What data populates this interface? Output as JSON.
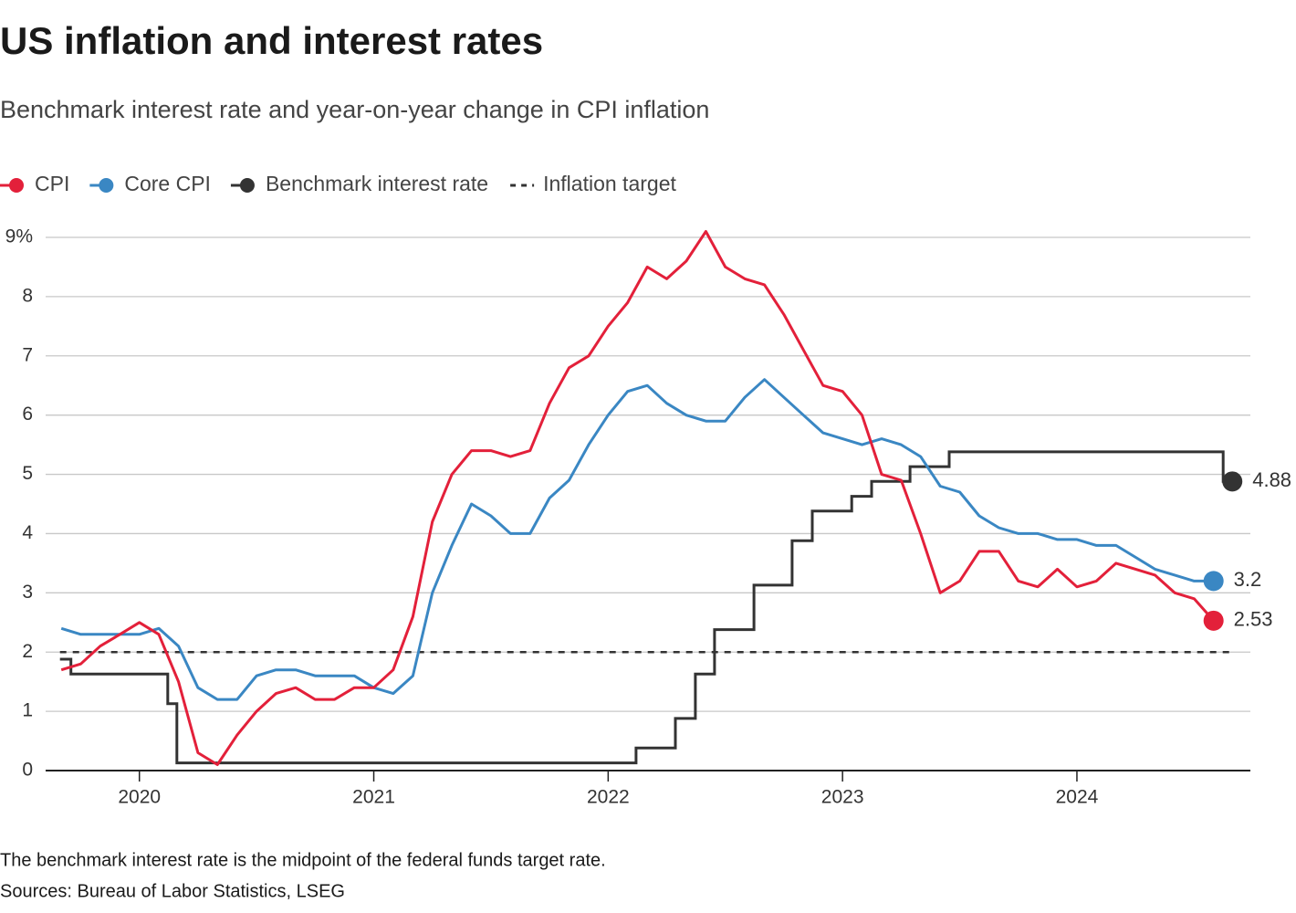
{
  "chart_data": {
    "type": "line",
    "title": "US inflation and interest rates",
    "subtitle": "Benchmark interest rate and year-on-year change in CPI inflation",
    "note": "The benchmark interest rate is the midpoint of the federal funds target rate.",
    "source": "Sources: Bureau of Labor Statistics, LSEG",
    "xlim": [
      2019.6,
      2024.74
    ],
    "xticks": [
      2020,
      2021,
      2022,
      2023,
      2024
    ],
    "ylim": [
      0,
      9
    ],
    "yticks": [
      0,
      1,
      2,
      3,
      4,
      5,
      6,
      7,
      8,
      {
        "value": 9,
        "label": "9%"
      }
    ],
    "grid": true,
    "legend": "top-left",
    "series": [
      {
        "name": "CPI",
        "color": "#e3203a",
        "style": "line",
        "end_dot": true,
        "x": [
          2019.667,
          2019.75,
          2019.833,
          2019.917,
          2020.0,
          2020.083,
          2020.167,
          2020.25,
          2020.333,
          2020.417,
          2020.5,
          2020.583,
          2020.667,
          2020.75,
          2020.833,
          2020.917,
          2021.0,
          2021.083,
          2021.167,
          2021.25,
          2021.333,
          2021.417,
          2021.5,
          2021.583,
          2021.667,
          2021.75,
          2021.833,
          2021.917,
          2022.0,
          2022.083,
          2022.167,
          2022.25,
          2022.333,
          2022.417,
          2022.5,
          2022.583,
          2022.667,
          2022.75,
          2022.833,
          2022.917,
          2023.0,
          2023.083,
          2023.167,
          2023.25,
          2023.333,
          2023.417,
          2023.5,
          2023.583,
          2023.667,
          2023.75,
          2023.833,
          2023.917,
          2024.0,
          2024.083,
          2024.167,
          2024.25,
          2024.333,
          2024.417,
          2024.5,
          2024.583
        ],
        "values": [
          1.7,
          1.8,
          2.1,
          2.3,
          2.5,
          2.3,
          1.5,
          0.3,
          0.1,
          0.6,
          1.0,
          1.3,
          1.4,
          1.2,
          1.2,
          1.4,
          1.4,
          1.7,
          2.6,
          4.2,
          5.0,
          5.4,
          5.4,
          5.3,
          5.4,
          6.2,
          6.8,
          7.0,
          7.5,
          7.9,
          8.5,
          8.3,
          8.6,
          9.1,
          8.5,
          8.3,
          8.2,
          7.7,
          7.1,
          6.5,
          6.4,
          6.0,
          5.0,
          4.9,
          4.0,
          3.0,
          3.2,
          3.7,
          3.7,
          3.2,
          3.1,
          3.4,
          3.1,
          3.2,
          3.5,
          3.4,
          3.3,
          3.0,
          2.9,
          2.53
        ]
      },
      {
        "name": "Core CPI",
        "color": "#3a87c3",
        "style": "line",
        "end_dot": true,
        "x": [
          2019.667,
          2019.75,
          2019.833,
          2019.917,
          2020.0,
          2020.083,
          2020.167,
          2020.25,
          2020.333,
          2020.417,
          2020.5,
          2020.583,
          2020.667,
          2020.75,
          2020.833,
          2020.917,
          2021.0,
          2021.083,
          2021.167,
          2021.25,
          2021.333,
          2021.417,
          2021.5,
          2021.583,
          2021.667,
          2021.75,
          2021.833,
          2021.917,
          2022.0,
          2022.083,
          2022.167,
          2022.25,
          2022.333,
          2022.417,
          2022.5,
          2022.583,
          2022.667,
          2022.75,
          2022.833,
          2022.917,
          2023.0,
          2023.083,
          2023.167,
          2023.25,
          2023.333,
          2023.417,
          2023.5,
          2023.583,
          2023.667,
          2023.75,
          2023.833,
          2023.917,
          2024.0,
          2024.083,
          2024.167,
          2024.25,
          2024.333,
          2024.417,
          2024.5,
          2024.583
        ],
        "values": [
          2.4,
          2.3,
          2.3,
          2.3,
          2.3,
          2.4,
          2.1,
          1.4,
          1.2,
          1.2,
          1.6,
          1.7,
          1.7,
          1.6,
          1.6,
          1.6,
          1.4,
          1.3,
          1.6,
          3.0,
          3.8,
          4.5,
          4.3,
          4.0,
          4.0,
          4.6,
          4.9,
          5.5,
          6.0,
          6.4,
          6.5,
          6.2,
          6.0,
          5.9,
          5.9,
          6.3,
          6.6,
          6.3,
          6.0,
          5.7,
          5.6,
          5.5,
          5.6,
          5.5,
          5.3,
          4.8,
          4.7,
          4.3,
          4.1,
          4.0,
          4.0,
          3.9,
          3.9,
          3.8,
          3.8,
          3.6,
          3.4,
          3.3,
          3.2,
          3.2
        ]
      },
      {
        "name": "Benchmark interest rate",
        "color": "#333333",
        "style": "step",
        "end_dot": true,
        "x": [
          2019.661,
          2019.708,
          2020.121,
          2020.16,
          2022.119,
          2022.287,
          2022.372,
          2022.454,
          2022.622,
          2022.785,
          2022.871,
          2023.039,
          2023.124,
          2023.288,
          2023.455,
          2024.624,
          2024.663
        ],
        "values": [
          1.88,
          1.63,
          1.13,
          0.13,
          0.38,
          0.88,
          1.63,
          2.38,
          3.13,
          3.88,
          4.38,
          4.63,
          4.88,
          5.13,
          5.38,
          4.88,
          4.88
        ]
      },
      {
        "name": "Inflation target",
        "color": "#333333",
        "style": "dashed",
        "end_dot": false,
        "x": [
          2019.661,
          2024.663
        ],
        "values": [
          2,
          2
        ]
      }
    ]
  }
}
